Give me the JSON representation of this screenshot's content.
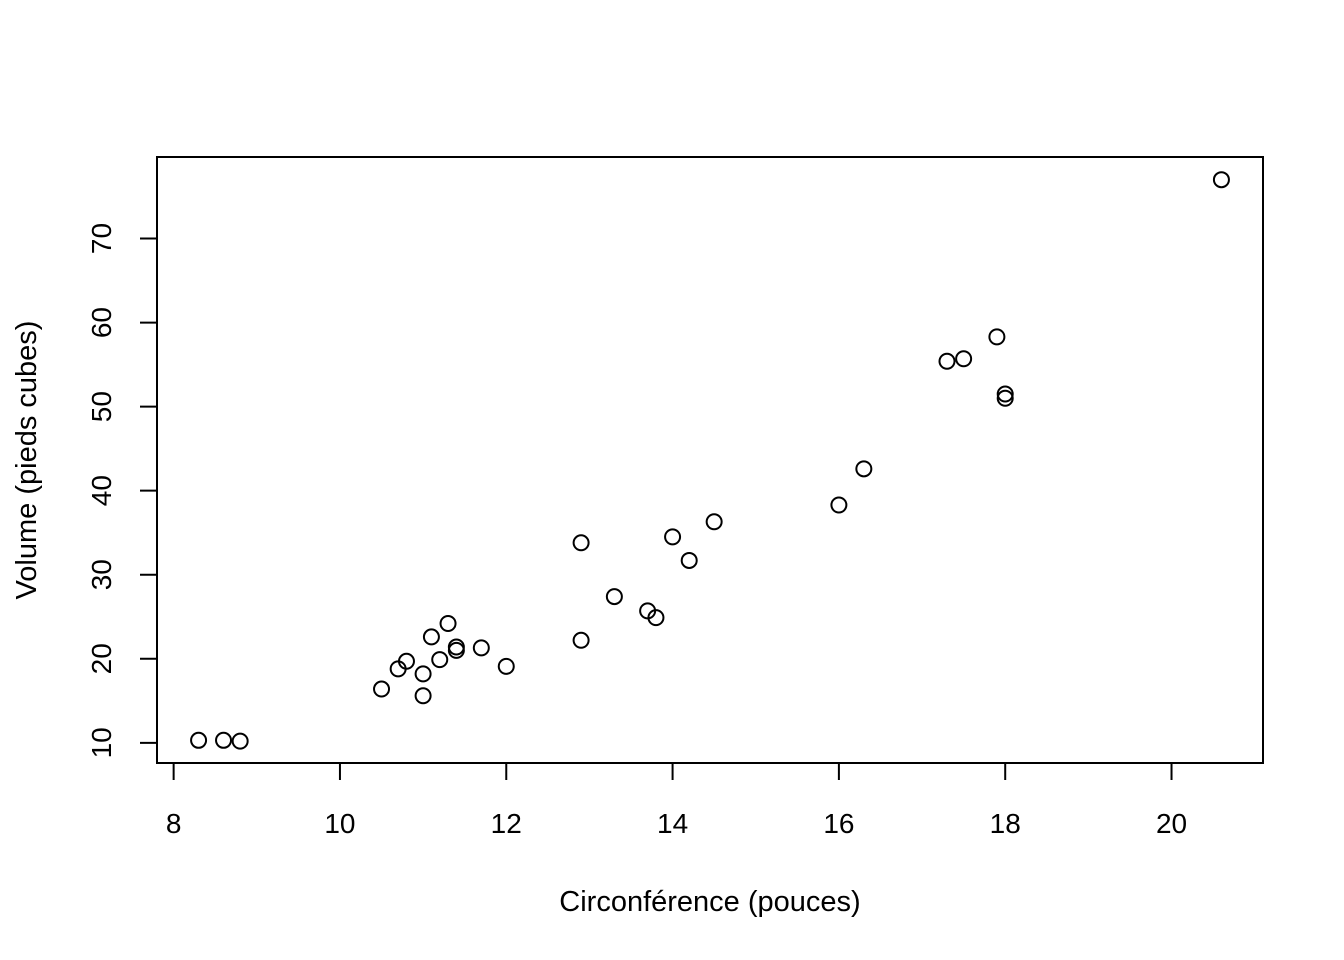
{
  "chart_data": {
    "type": "scatter",
    "title": "",
    "xlabel": "Circonférence (pouces)",
    "ylabel": "Volume (pieds cubes)",
    "xlim": [
      7.8,
      21.1
    ],
    "ylim": [
      7.6,
      79.7
    ],
    "xticks": [
      "8",
      "10",
      "12",
      "14",
      "16",
      "18",
      "20"
    ],
    "yticks": [
      "10",
      "20",
      "30",
      "40",
      "50",
      "60",
      "70"
    ],
    "grid": false,
    "marker": "open-circle",
    "colors": {
      "points": "#000000",
      "axes": "#000000",
      "background": "#ffffff"
    },
    "x": [
      8.3,
      8.6,
      8.8,
      10.5,
      10.7,
      10.8,
      11.0,
      11.0,
      11.1,
      11.2,
      11.3,
      11.4,
      11.4,
      11.7,
      12.0,
      12.9,
      12.9,
      13.3,
      13.7,
      13.8,
      14.0,
      14.2,
      14.5,
      16.0,
      16.3,
      17.3,
      17.5,
      17.9,
      18.0,
      18.0,
      20.6
    ],
    "y": [
      10.3,
      10.3,
      10.2,
      16.4,
      18.8,
      19.7,
      15.6,
      18.2,
      22.6,
      19.9,
      24.2,
      21.0,
      21.4,
      21.3,
      19.1,
      22.2,
      33.8,
      27.4,
      25.7,
      24.9,
      34.5,
      31.7,
      36.3,
      38.3,
      42.6,
      55.4,
      55.7,
      58.3,
      51.5,
      51.0,
      77.0
    ]
  }
}
